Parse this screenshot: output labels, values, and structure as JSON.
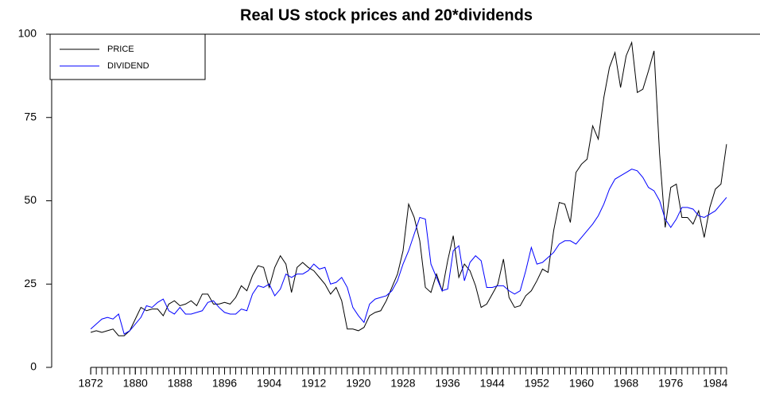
{
  "chart_data": {
    "type": "line",
    "title": "Real US stock prices and 20*dividends",
    "x": [
      1872,
      1873,
      1874,
      1875,
      1876,
      1877,
      1878,
      1879,
      1880,
      1881,
      1882,
      1883,
      1884,
      1885,
      1886,
      1887,
      1888,
      1889,
      1890,
      1891,
      1892,
      1893,
      1894,
      1895,
      1896,
      1897,
      1898,
      1899,
      1900,
      1901,
      1902,
      1903,
      1904,
      1905,
      1906,
      1907,
      1908,
      1909,
      1910,
      1911,
      1912,
      1913,
      1914,
      1915,
      1916,
      1917,
      1918,
      1919,
      1920,
      1921,
      1922,
      1923,
      1924,
      1925,
      1926,
      1927,
      1928,
      1929,
      1930,
      1931,
      1932,
      1933,
      1934,
      1935,
      1936,
      1937,
      1938,
      1939,
      1940,
      1941,
      1942,
      1943,
      1944,
      1945,
      1946,
      1947,
      1948,
      1949,
      1950,
      1951,
      1952,
      1953,
      1954,
      1955,
      1956,
      1957,
      1958,
      1959,
      1960,
      1961,
      1962,
      1963,
      1964,
      1965,
      1966,
      1967,
      1968,
      1969,
      1970,
      1971,
      1972,
      1973,
      1974,
      1975,
      1976,
      1977,
      1978,
      1979,
      1980,
      1981,
      1982,
      1983,
      1984,
      1985,
      1986
    ],
    "series": [
      {
        "name": "PRICE",
        "color": "#000000",
        "values": [
          10.5,
          11,
          10.5,
          11,
          11.5,
          9.5,
          9.5,
          11,
          14.5,
          18,
          17,
          17.5,
          17.5,
          15.5,
          19,
          20,
          18.5,
          19,
          20,
          18.5,
          22,
          22,
          19,
          19,
          19.5,
          19,
          21,
          24.5,
          23,
          27.5,
          30.5,
          30,
          24,
          30,
          33.5,
          31,
          22.5,
          30,
          31.5,
          30,
          29,
          27,
          25,
          22,
          24,
          20,
          11.5,
          11.5,
          11,
          12,
          15.5,
          16.5,
          17,
          20,
          24,
          28,
          35,
          49,
          45,
          38,
          24,
          22.5,
          28,
          23,
          32,
          39.5,
          27,
          31,
          29,
          24.5,
          18,
          19,
          22,
          25,
          32.5,
          21,
          18,
          18.5,
          21.5,
          23,
          26,
          29.5,
          28.5,
          41,
          49.5,
          49,
          43.5,
          58.5,
          61,
          62.5,
          72.5,
          68.5,
          81,
          90,
          94.5,
          84,
          93.5,
          97.5,
          82.5,
          83.5,
          89,
          95,
          64,
          42,
          54,
          55,
          45,
          45,
          43,
          47,
          39,
          48,
          53.5,
          55,
          67
        ]
      },
      {
        "name": "DIVIDEND",
        "color": "#0000ff",
        "values": [
          11.5,
          13,
          14.5,
          15,
          14.5,
          16,
          10,
          11,
          13,
          15,
          18.5,
          18,
          19.5,
          20.5,
          17,
          16,
          18,
          16,
          16,
          16.5,
          17,
          19.5,
          20,
          18,
          16.5,
          16,
          16,
          17.5,
          17,
          22,
          24.5,
          24,
          25,
          21.5,
          23.5,
          28,
          27,
          28,
          28,
          29,
          31,
          29.5,
          30,
          25,
          25.5,
          27,
          24,
          18,
          15.5,
          13.5,
          19,
          20.5,
          21,
          21.5,
          23,
          26,
          31,
          35,
          40,
          45,
          44.5,
          31,
          27,
          23,
          23.5,
          35,
          36.5,
          26,
          31.5,
          33.5,
          32,
          24,
          24,
          24.5,
          24.5,
          23,
          22,
          23,
          29,
          36,
          31,
          31.5,
          33,
          34.5,
          37,
          38,
          38,
          37,
          39,
          41,
          43,
          45.5,
          49,
          53.5,
          56.5,
          57.5,
          58.5,
          59.5,
          59,
          57,
          54,
          53,
          50,
          44.5,
          42,
          44.5,
          48,
          48,
          47.5,
          45.5,
          45,
          46,
          47,
          49,
          51
        ]
      }
    ],
    "xlim": [
      1865,
      1992
    ],
    "xticks": [
      1872,
      1880,
      1888,
      1896,
      1904,
      1912,
      1920,
      1928,
      1936,
      1944,
      1952,
      1960,
      1968,
      1976,
      1984
    ],
    "ylim": [
      0,
      100
    ],
    "yticks": [
      0,
      25,
      50,
      75,
      100
    ],
    "legend": "upper left"
  }
}
